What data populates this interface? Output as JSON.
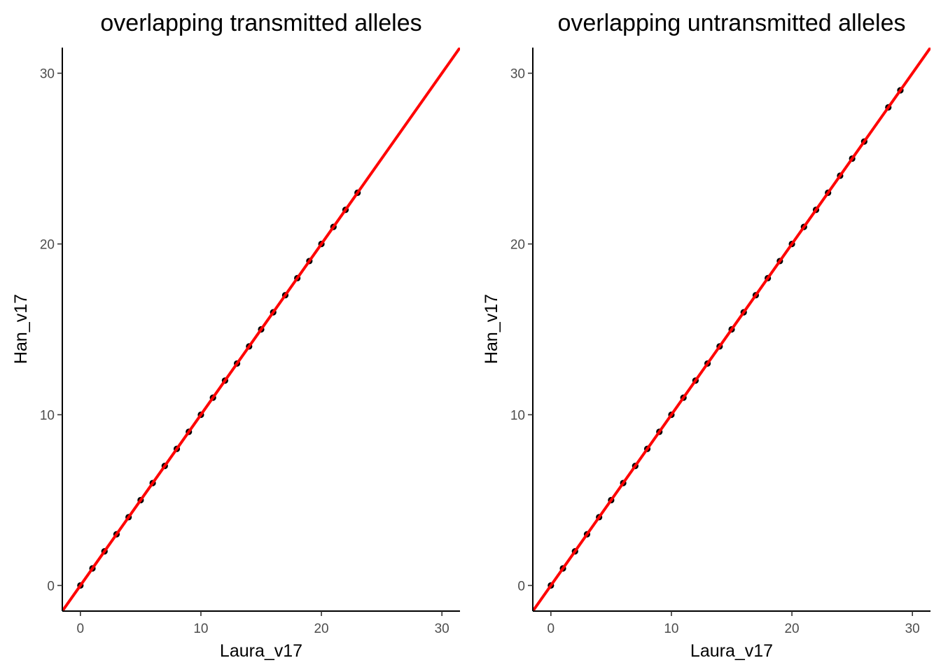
{
  "chart_data": [
    {
      "type": "scatter",
      "title": "overlapping transmitted alleles",
      "xlabel": "Laura_v17",
      "ylabel": "Han_v17",
      "xlim": [
        -1.5,
        31.5
      ],
      "ylim": [
        -1.5,
        31.5
      ],
      "xticks": [
        0,
        10,
        20,
        30
      ],
      "yticks": [
        0,
        10,
        20,
        30
      ],
      "grid": false,
      "points": {
        "x": [
          0,
          1,
          2,
          3,
          4,
          5,
          6,
          7,
          8,
          9,
          10,
          11,
          12,
          13,
          14,
          15,
          16,
          17,
          18,
          19,
          20,
          21,
          22,
          23
        ],
        "y": [
          0,
          1,
          2,
          3,
          4,
          5,
          6,
          7,
          8,
          9,
          10,
          11,
          12,
          13,
          14,
          15,
          16,
          17,
          18,
          19,
          20,
          21,
          22,
          23
        ]
      },
      "fit_line": {
        "slope": 1,
        "intercept": 0,
        "color": "#ff0000"
      },
      "point_color": "#000000"
    },
    {
      "type": "scatter",
      "title": "overlapping untransmitted alleles",
      "xlabel": "Laura_v17",
      "ylabel": "Han_v17",
      "xlim": [
        -1.5,
        31.5
      ],
      "ylim": [
        -1.5,
        31.5
      ],
      "xticks": [
        0,
        10,
        20,
        30
      ],
      "yticks": [
        0,
        10,
        20,
        30
      ],
      "grid": false,
      "points": {
        "x": [
          0,
          1,
          2,
          3,
          4,
          5,
          6,
          7,
          8,
          9,
          10,
          11,
          12,
          13,
          14,
          15,
          16,
          17,
          18,
          19,
          20,
          21,
          22,
          23,
          24,
          25,
          26,
          28,
          29
        ],
        "y": [
          0,
          1,
          2,
          3,
          4,
          5,
          6,
          7,
          8,
          9,
          10,
          11,
          12,
          13,
          14,
          15,
          16,
          17,
          18,
          19,
          20,
          21,
          22,
          23,
          24,
          25,
          26,
          28,
          29
        ]
      },
      "fit_line": {
        "slope": 1,
        "intercept": 0,
        "color": "#ff0000"
      },
      "point_color": "#000000"
    }
  ]
}
